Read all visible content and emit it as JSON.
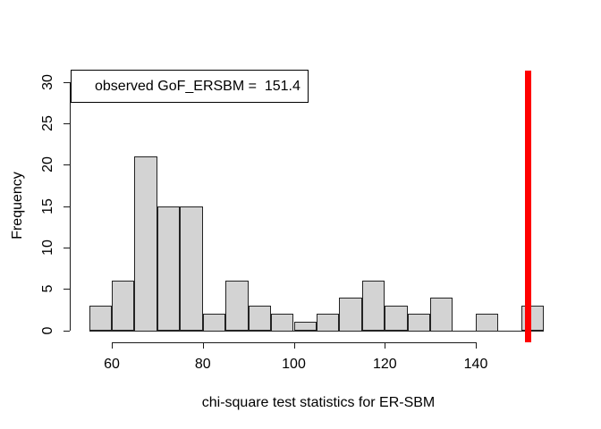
{
  "chart_data": {
    "type": "bar",
    "subtype": "histogram",
    "title": "",
    "xlabel": "chi-square test statistics for ER-SBM",
    "ylabel": "Frequency",
    "legend_text": "observed GoF_ERSBM =  151.4",
    "observed_value": 151.4,
    "bin_start": 55,
    "bin_width": 5,
    "categories": [
      "55-60",
      "60-65",
      "65-70",
      "70-75",
      "75-80",
      "80-85",
      "85-90",
      "90-95",
      "95-100",
      "100-105",
      "105-110",
      "110-115",
      "115-120",
      "120-125",
      "125-130",
      "130-135",
      "135-140",
      "140-145",
      "145-150",
      "150-155"
    ],
    "values": [
      3,
      6,
      21,
      15,
      15,
      2,
      6,
      3,
      2,
      1,
      2,
      4,
      6,
      3,
      2,
      4,
      0,
      2,
      0,
      3
    ],
    "x_ticks": [
      60,
      80,
      100,
      120,
      140
    ],
    "y_ticks": [
      0,
      5,
      10,
      15,
      20,
      25,
      30
    ],
    "xlim": [
      55,
      155
    ],
    "ylim": [
      0,
      30
    ],
    "grid": "off",
    "legend_position": "top-left",
    "colors": {
      "bar_fill": "#d3d3d3",
      "bar_border": "#232323",
      "observed_line": "#ff0000",
      "axis": "#1a1a1a",
      "background": "#ffffff"
    }
  }
}
